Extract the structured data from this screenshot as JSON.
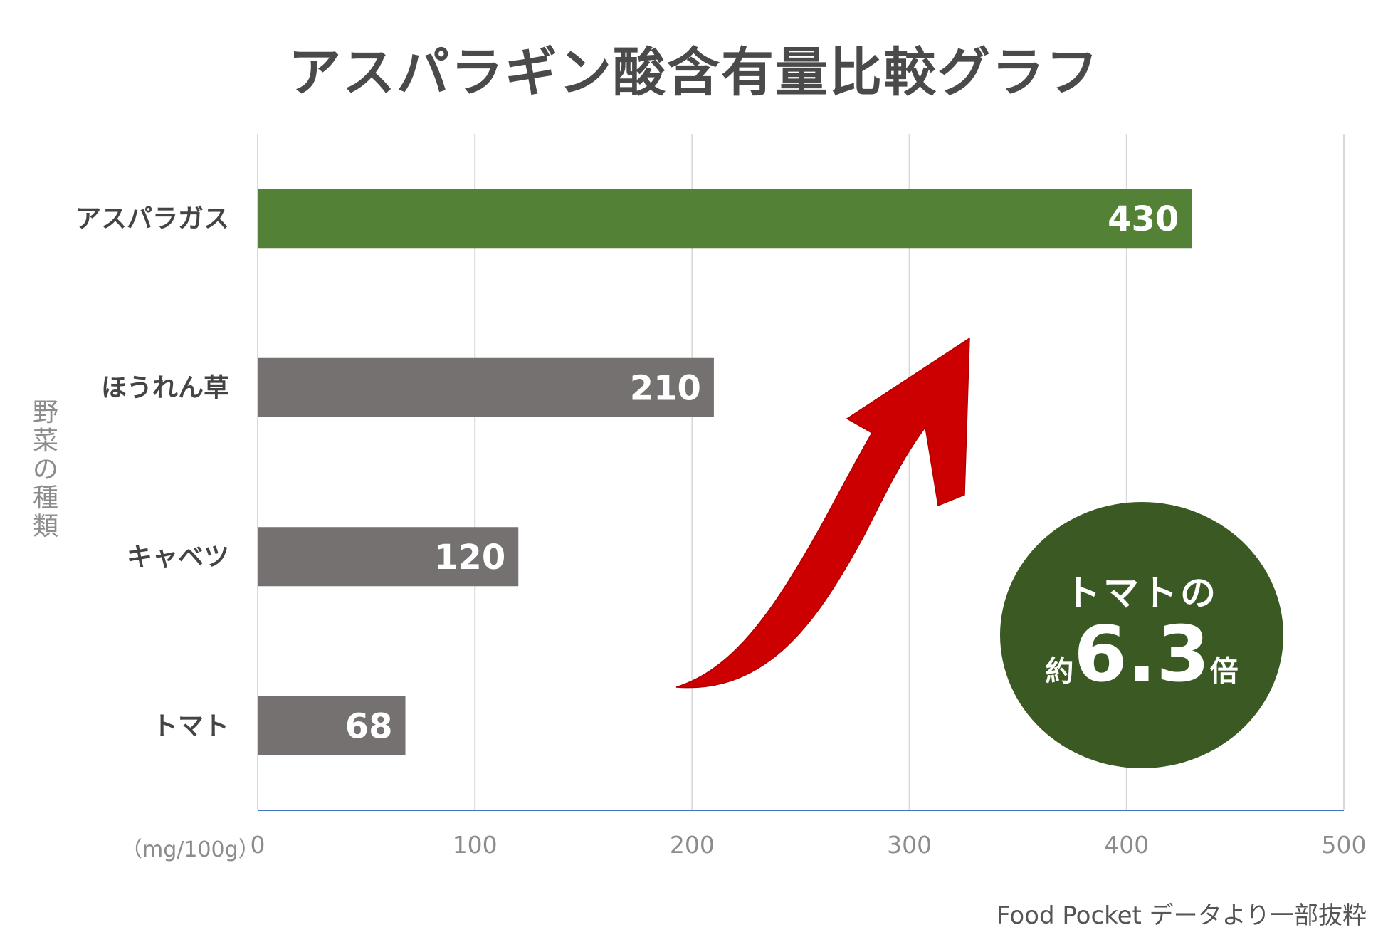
{
  "chart_data": {
    "type": "bar",
    "orientation": "horizontal",
    "title": "アスパラギン酸含有量比較グラフ",
    "ylabel": "野菜の種類",
    "unit": "（mg/100g）",
    "categories": [
      "アスパラガス",
      "ほうれん草",
      "キャベツ",
      "トマト"
    ],
    "values": [
      430,
      210,
      120,
      68
    ],
    "bar_colors": [
      "#538135",
      "#767171",
      "#767171",
      "#767171"
    ],
    "xlim": [
      0,
      500
    ],
    "xticks": [
      0,
      100,
      200,
      300,
      400,
      500
    ],
    "grid": true,
    "legend": "none",
    "annotation": {
      "line1": "トマトの",
      "prefix": "約",
      "value": "6.3",
      "suffix": "倍",
      "color": "#3b5a23"
    },
    "arrow_color": "#cc0000",
    "source": "Food Pocket データより一部抜粋"
  }
}
